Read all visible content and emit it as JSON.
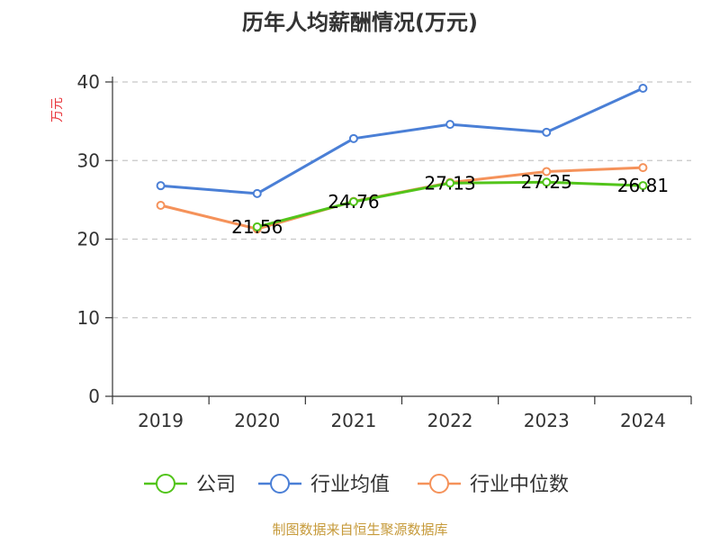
{
  "chart_data": {
    "type": "line",
    "title": "历年人均薪酬情况(万元)",
    "xlabel": "",
    "ylabel": "万元",
    "categories": [
      "2019",
      "2020",
      "2021",
      "2022",
      "2023",
      "2024"
    ],
    "ylim": [
      0,
      40
    ],
    "yticks": [
      0,
      10,
      20,
      30,
      40
    ],
    "grid": true,
    "legend_position": "bottom",
    "series": [
      {
        "name": "公司",
        "color": "#52c41a",
        "values": [
          null,
          21.56,
          24.76,
          27.13,
          27.25,
          26.81
        ],
        "labels": [
          "",
          "21.56",
          "24.76",
          "27.13",
          "27.25",
          "26.81"
        ]
      },
      {
        "name": "行业均值",
        "color": "#4a7fd6",
        "values": [
          26.8,
          25.8,
          32.8,
          34.6,
          33.6,
          39.2
        ],
        "labels": [
          "",
          "",
          "",
          "",
          "",
          ""
        ]
      },
      {
        "name": "行业中位数",
        "color": "#f5925a",
        "values": [
          24.3,
          21.3,
          24.8,
          27.2,
          28.6,
          29.1
        ],
        "labels": [
          "",
          "",
          "",
          "",
          "",
          ""
        ]
      }
    ],
    "source": "制图数据来自恒生聚源数据库"
  }
}
